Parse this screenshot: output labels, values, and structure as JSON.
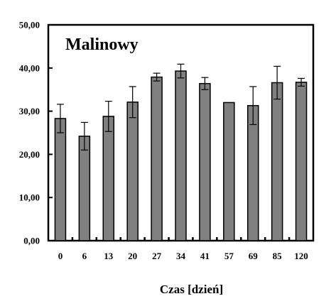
{
  "chart_data": {
    "type": "bar",
    "title": "Malinowy",
    "xlabel": "Czas [dzień]",
    "ylabel": "",
    "categories": [
      "0",
      "6",
      "13",
      "20",
      "27",
      "34",
      "41",
      "57",
      "69",
      "85",
      "120"
    ],
    "values": [
      28.3,
      24.2,
      28.8,
      32.1,
      37.9,
      39.3,
      36.4,
      32.0,
      31.3,
      36.6,
      36.7
    ],
    "error": [
      3.3,
      3.2,
      3.5,
      3.6,
      0.9,
      1.6,
      1.4,
      0.0,
      4.4,
      3.8,
      0.9
    ],
    "ylim": [
      0,
      50
    ],
    "yticks": [
      "0,00",
      "10,00",
      "20,00",
      "30,00",
      "40,00",
      "50,00"
    ],
    "grid": false,
    "bar_color": "#808080",
    "bar_edge_color": "#000000"
  }
}
